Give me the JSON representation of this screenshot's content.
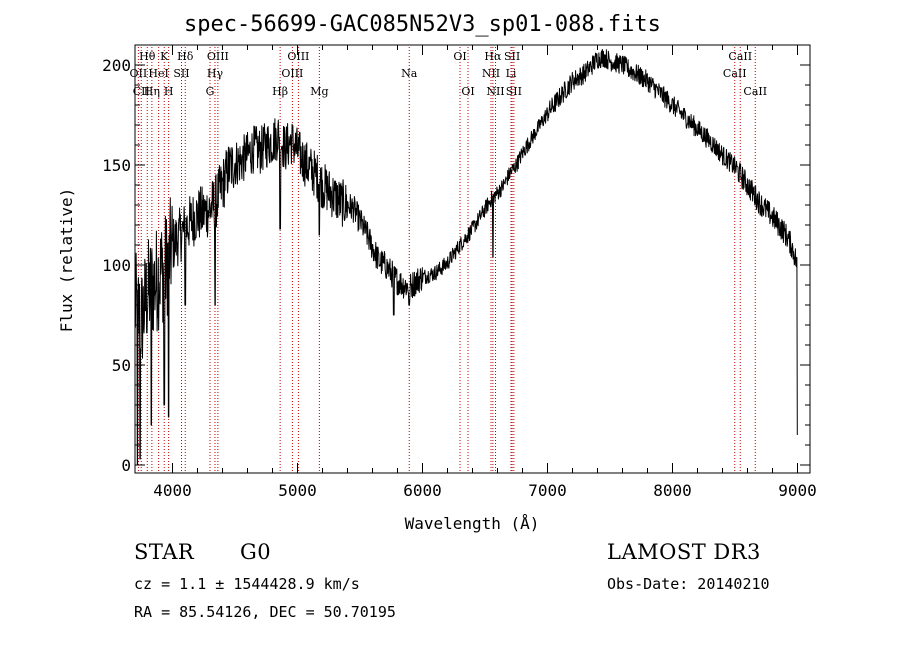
{
  "chart_data": {
    "type": "line",
    "title": "spec-56699-GAC085N52V3_sp01-088.fits",
    "xlabel": "Wavelength (Å)",
    "ylabel": "Flux (relative)",
    "xlim": [
      3700,
      9100
    ],
    "ylim": [
      -4,
      210
    ],
    "xticks": [
      4000,
      5000,
      6000,
      7000,
      8000,
      9000
    ],
    "yticks": [
      0,
      50,
      100,
      150,
      200
    ],
    "grid": false,
    "series": [
      {
        "name": "flux",
        "anchors": [
          [
            3700,
            80
          ],
          [
            3750,
            72
          ],
          [
            3800,
            86
          ],
          [
            3850,
            90
          ],
          [
            3900,
            96
          ],
          [
            3950,
            100
          ],
          [
            4000,
            110
          ],
          [
            4050,
            114
          ],
          [
            4100,
            118
          ],
          [
            4150,
            122
          ],
          [
            4200,
            125
          ],
          [
            4250,
            126
          ],
          [
            4300,
            128
          ],
          [
            4350,
            132
          ],
          [
            4400,
            140
          ],
          [
            4450,
            148
          ],
          [
            4500,
            151
          ],
          [
            4550,
            152
          ],
          [
            4600,
            155
          ],
          [
            4650,
            158
          ],
          [
            4700,
            157
          ],
          [
            4750,
            160
          ],
          [
            4800,
            162
          ],
          [
            4850,
            165
          ],
          [
            4900,
            158
          ],
          [
            4950,
            162
          ],
          [
            5000,
            157
          ],
          [
            5050,
            152
          ],
          [
            5100,
            148
          ],
          [
            5150,
            145
          ],
          [
            5200,
            140
          ],
          [
            5250,
            137
          ],
          [
            5300,
            134
          ],
          [
            5350,
            131
          ],
          [
            5400,
            130
          ],
          [
            5450,
            128
          ],
          [
            5500,
            122
          ],
          [
            5550,
            116
          ],
          [
            5600,
            109
          ],
          [
            5650,
            102
          ],
          [
            5700,
            100
          ],
          [
            5750,
            96
          ],
          [
            5800,
            92
          ],
          [
            5850,
            90
          ],
          [
            5900,
            89
          ],
          [
            5950,
            92
          ],
          [
            6000,
            94
          ],
          [
            6100,
            96
          ],
          [
            6200,
            101
          ],
          [
            6300,
            110
          ],
          [
            6400,
            118
          ],
          [
            6500,
            128
          ],
          [
            6550,
            133
          ],
          [
            6600,
            136
          ],
          [
            6650,
            140
          ],
          [
            6700,
            146
          ],
          [
            6750,
            150
          ],
          [
            6800,
            156
          ],
          [
            6900,
            166
          ],
          [
            7000,
            176
          ],
          [
            7100,
            184
          ],
          [
            7200,
            192
          ],
          [
            7300,
            196
          ],
          [
            7400,
            203
          ],
          [
            7450,
            204
          ],
          [
            7500,
            202
          ],
          [
            7600,
            200
          ],
          [
            7700,
            196
          ],
          [
            7800,
            192
          ],
          [
            7900,
            186
          ],
          [
            8000,
            180
          ],
          [
            8100,
            174
          ],
          [
            8200,
            168
          ],
          [
            8300,
            162
          ],
          [
            8400,
            155
          ],
          [
            8500,
            149
          ],
          [
            8600,
            140
          ],
          [
            8700,
            131
          ],
          [
            8800,
            124
          ],
          [
            8900,
            116
          ],
          [
            8950,
            110
          ],
          [
            9000,
            100
          ]
        ],
        "absorption_dips": [
          [
            3720,
            0
          ],
          [
            3740,
            3
          ],
          [
            3830,
            20
          ],
          [
            3934,
            30
          ],
          [
            3969,
            24
          ],
          [
            4102,
            80
          ],
          [
            4340,
            80
          ],
          [
            4861,
            118
          ],
          [
            5175,
            115
          ],
          [
            5770,
            75
          ],
          [
            5893,
            80
          ],
          [
            6563,
            104
          ],
          [
            9000,
            15
          ]
        ]
      }
    ],
    "lines": [
      {
        "wave": 3727,
        "label": "OII",
        "row": 1
      },
      {
        "wave": 3750,
        "label": "CII",
        "row": 2
      },
      {
        "wave": 3798,
        "label": "Hθ",
        "row": 0
      },
      {
        "wave": 3835,
        "label": "Hη",
        "row": 2
      },
      {
        "wave": 3889,
        "label": "HeI",
        "row": 1
      },
      {
        "wave": 3934,
        "label": "K",
        "row": 0
      },
      {
        "wave": 3969,
        "label": "H",
        "row": 2
      },
      {
        "wave": 4072,
        "label": "SII",
        "row": 1
      },
      {
        "wave": 4102,
        "label": "Hδ",
        "row": 0
      },
      {
        "wave": 4300,
        "label": "G",
        "row": 2
      },
      {
        "wave": 4340,
        "label": "Hγ",
        "row": 1
      },
      {
        "wave": 4363,
        "label": "OIII",
        "row": 0
      },
      {
        "wave": 4861,
        "label": "Hβ",
        "row": 2
      },
      {
        "wave": 4959,
        "label": "OIII",
        "row": 1
      },
      {
        "wave": 5007,
        "label": "OIII",
        "row": 0
      },
      {
        "wave": 5175,
        "label": "Mg",
        "row": 2
      },
      {
        "wave": 5894,
        "label": "Na",
        "row": 1
      },
      {
        "wave": 6300,
        "label": "OI",
        "row": 0
      },
      {
        "wave": 6364,
        "label": "OI",
        "row": 2
      },
      {
        "wave": 6548,
        "label": "NII",
        "row": 1
      },
      {
        "wave": 6563,
        "label": "Hα",
        "row": 0
      },
      {
        "wave": 6584,
        "label": "NII",
        "row": 2
      },
      {
        "wave": 6708,
        "label": "Li",
        "row": 1
      },
      {
        "wave": 6717,
        "label": "SII",
        "row": 0
      },
      {
        "wave": 6731,
        "label": "SII",
        "row": 2
      },
      {
        "wave": 8498,
        "label": "CaII",
        "row": 1
      },
      {
        "wave": 8542,
        "label": "CaII",
        "row": 0
      },
      {
        "wave": 8662,
        "label": "CaII",
        "row": 2
      }
    ],
    "line_color": "#c00000"
  },
  "info": {
    "object_class": "STAR",
    "subclass": "G0",
    "survey": "LAMOST DR3",
    "redshift_text": "cz =  1.1 ± 1544428.9 km/s",
    "obs_date_text": "Obs-Date: 20140210",
    "coords_text": "RA =  85.54126, DEC =  50.70195"
  }
}
